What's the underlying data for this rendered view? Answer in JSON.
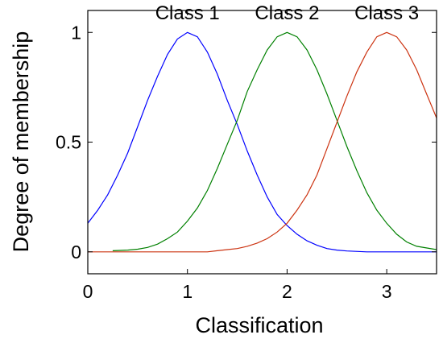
{
  "chart_data": {
    "type": "line",
    "xlabel": "Classification",
    "ylabel": "Degree of membership",
    "xlim": [
      0,
      3.5
    ],
    "ylim": [
      -0.1,
      1.1
    ],
    "x_ticks": [
      0,
      1,
      2,
      3
    ],
    "x_tick_labels": [
      "0",
      "1",
      "2",
      "3"
    ],
    "y_ticks": [
      0,
      0.5,
      1
    ],
    "y_tick_labels": [
      "0",
      "0.5",
      "1"
    ],
    "grid": false,
    "legend": "none",
    "annotations": [
      {
        "text": "Class 1",
        "x": 1,
        "y": 1.06
      },
      {
        "text": "Class 2",
        "x": 2,
        "y": 1.06
      },
      {
        "text": "Class 3",
        "x": 3,
        "y": 1.06
      }
    ],
    "series": [
      {
        "color": "#0000ff",
        "x": [
          0,
          0.1,
          0.2,
          0.3,
          0.4,
          0.5,
          0.6,
          0.7,
          0.8,
          0.9,
          1.0,
          1.1,
          1.2,
          1.3,
          1.4,
          1.5,
          1.6,
          1.7,
          1.8,
          1.9,
          2.0,
          2.1,
          2.2,
          2.3,
          2.4,
          2.5,
          2.6,
          2.8,
          3.0,
          3.5
        ],
        "y": [
          0.13,
          0.19,
          0.26,
          0.35,
          0.45,
          0.57,
          0.69,
          0.8,
          0.9,
          0.97,
          1.0,
          0.98,
          0.91,
          0.81,
          0.69,
          0.58,
          0.46,
          0.35,
          0.25,
          0.17,
          0.12,
          0.08,
          0.05,
          0.03,
          0.015,
          0.008,
          0.004,
          0.0,
          0.0,
          0.0
        ]
      },
      {
        "color": "#008000",
        "x": [
          0.25,
          0.4,
          0.5,
          0.6,
          0.7,
          0.8,
          0.9,
          1.0,
          1.1,
          1.2,
          1.3,
          1.4,
          1.5,
          1.6,
          1.7,
          1.8,
          1.9,
          2.0,
          2.1,
          2.2,
          2.3,
          2.4,
          2.5,
          2.6,
          2.7,
          2.8,
          2.9,
          3.0,
          3.1,
          3.2,
          3.3,
          3.5
        ],
        "y": [
          0.005,
          0.008,
          0.012,
          0.02,
          0.035,
          0.06,
          0.09,
          0.14,
          0.2,
          0.28,
          0.38,
          0.49,
          0.6,
          0.73,
          0.83,
          0.92,
          0.98,
          1.0,
          0.98,
          0.92,
          0.83,
          0.72,
          0.6,
          0.48,
          0.37,
          0.27,
          0.19,
          0.13,
          0.08,
          0.045,
          0.025,
          0.01
        ]
      },
      {
        "color": "#cc3311",
        "x": [
          0,
          1.2,
          1.3,
          1.4,
          1.5,
          1.6,
          1.7,
          1.8,
          1.9,
          2.0,
          2.1,
          2.2,
          2.3,
          2.4,
          2.5,
          2.6,
          2.7,
          2.8,
          2.9,
          3.0,
          3.1,
          3.2,
          3.3,
          3.4,
          3.5
        ],
        "y": [
          0.0,
          0.0,
          0.005,
          0.01,
          0.015,
          0.025,
          0.04,
          0.06,
          0.09,
          0.13,
          0.19,
          0.26,
          0.35,
          0.47,
          0.59,
          0.71,
          0.82,
          0.91,
          0.98,
          1.0,
          0.98,
          0.92,
          0.83,
          0.72,
          0.61
        ]
      }
    ]
  }
}
